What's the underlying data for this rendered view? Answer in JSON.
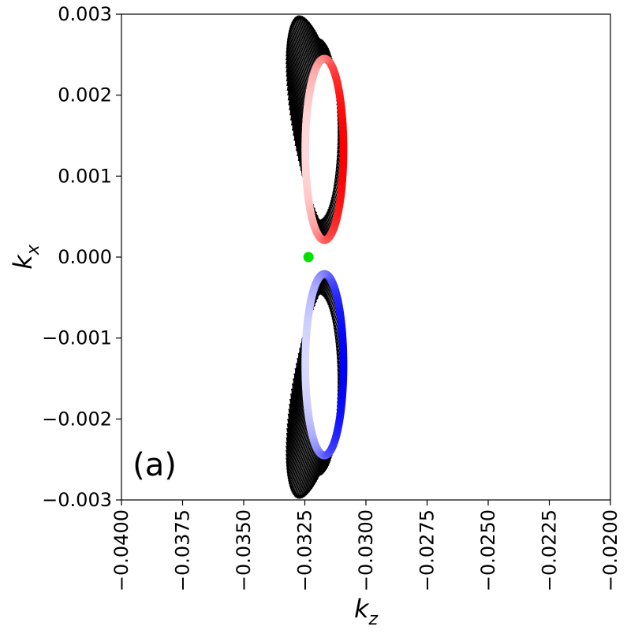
{
  "chart_data": {
    "type": "scatter",
    "title": "",
    "xlabel_base": "k",
    "xlabel_sub": "z",
    "ylabel_base": "k",
    "ylabel_sub": "x",
    "xlim": [
      -0.04,
      -0.02
    ],
    "ylim": [
      -0.003,
      0.003
    ],
    "xticks": [
      -0.04,
      -0.0375,
      -0.035,
      -0.0325,
      -0.03,
      -0.0275,
      -0.025,
      -0.0225,
      -0.02
    ],
    "xtick_labels": [
      "−0.0400",
      "−0.0375",
      "−0.0350",
      "−0.0325",
      "−0.0300",
      "−0.0275",
      "−0.0250",
      "−0.0225",
      "−0.0200"
    ],
    "yticks": [
      -0.003,
      -0.002,
      -0.001,
      0.0,
      0.001,
      0.002,
      0.003
    ],
    "ytick_labels": [
      "−0.003",
      "−0.002",
      "−0.001",
      "0.000",
      "0.001",
      "0.002",
      "0.003"
    ],
    "grid": false,
    "annotation": "(a)",
    "series": [
      {
        "kind": "ring",
        "color_gradient": [
          "#ffffff",
          "#ff0000"
        ],
        "center": [
          -0.0317,
          0.00133
        ],
        "semi_axes": [
          0.00078,
          0.00112
        ],
        "arrow_color": "#000000"
      },
      {
        "kind": "ring",
        "color_gradient": [
          "#ffffff",
          "#0000ff"
        ],
        "center": [
          -0.0317,
          -0.00133
        ],
        "semi_axes": [
          0.00078,
          0.00112
        ],
        "arrow_color": "#000000"
      },
      {
        "kind": "point",
        "color": "#00e000",
        "x": -0.03235,
        "y": 0.0
      }
    ]
  }
}
